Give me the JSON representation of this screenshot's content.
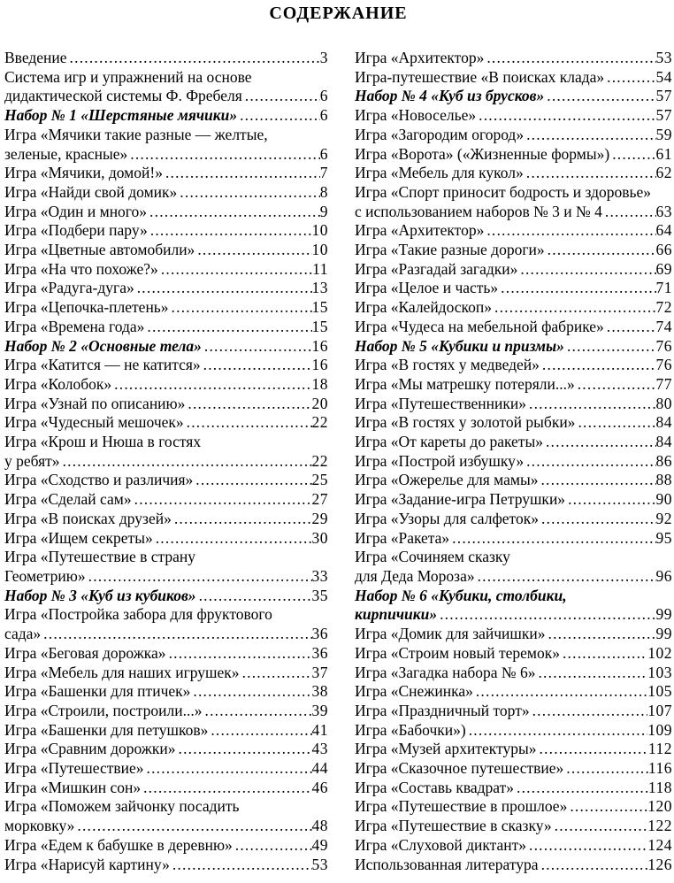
{
  "page": {
    "title": "СОДЕРЖАНИЕ"
  },
  "toc": {
    "left": [
      {
        "lines": [
          "Введение"
        ],
        "page": "3"
      },
      {
        "lines": [
          "Система игр и упражнений на основе",
          "дидактической системы Ф. Фребеля"
        ],
        "page": "6"
      },
      {
        "lines": [
          "Набор № 1 «Шерстяные мячики»"
        ],
        "page": "6",
        "section": true
      },
      {
        "lines": [
          "Игра «Мячики такие разные — желтые,",
          "зеленые, красные»"
        ],
        "page": "6"
      },
      {
        "lines": [
          "Игра «Мячики, домой!»"
        ],
        "page": "7"
      },
      {
        "lines": [
          "Игра «Найди свой домик»"
        ],
        "page": "8"
      },
      {
        "lines": [
          "Игра «Один и много»"
        ],
        "page": "9"
      },
      {
        "lines": [
          "Игра «Подбери пару»"
        ],
        "page": "10"
      },
      {
        "lines": [
          "Игра «Цветные автомобили»"
        ],
        "page": "10"
      },
      {
        "lines": [
          "Игра «На что похоже?»"
        ],
        "page": "11"
      },
      {
        "lines": [
          "Игра «Радуга-дуга»"
        ],
        "page": "13"
      },
      {
        "lines": [
          "Игра «Цепочка-плетень»"
        ],
        "page": "15"
      },
      {
        "lines": [
          "Игра «Времена года»"
        ],
        "page": "15"
      },
      {
        "lines": [
          "Набор № 2 «Основные тела»"
        ],
        "page": "16",
        "section": true
      },
      {
        "lines": [
          "Игра «Катится — не катится»"
        ],
        "page": "16"
      },
      {
        "lines": [
          "Игра «Колобок»"
        ],
        "page": "18"
      },
      {
        "lines": [
          "Игра «Узнай по описанию»"
        ],
        "page": "20"
      },
      {
        "lines": [
          "Игра «Чудесный мешочек»"
        ],
        "page": "22"
      },
      {
        "lines": [
          "Игра «Крош и Нюша в гостях",
          "у ребят»"
        ],
        "page": "22"
      },
      {
        "lines": [
          "Игра «Сходство и различия»"
        ],
        "page": "25"
      },
      {
        "lines": [
          "Игра «Сделай сам»"
        ],
        "page": "27"
      },
      {
        "lines": [
          "Игра «В поисках друзей»"
        ],
        "page": "29"
      },
      {
        "lines": [
          "Игра «Ищем секреты»"
        ],
        "page": "30"
      },
      {
        "lines": [
          "Игра «Путешествие в страну",
          "Геометрию»"
        ],
        "page": "33"
      },
      {
        "lines": [
          "Набор № 3 «Куб из кубиков»"
        ],
        "page": "35",
        "section": true
      },
      {
        "lines": [
          "Игра «Постройка забора для фруктового",
          "сада»"
        ],
        "page": "36"
      },
      {
        "lines": [
          "Игра «Беговая дорожка»"
        ],
        "page": "36"
      },
      {
        "lines": [
          "Игра «Мебель для наших игрушек»"
        ],
        "page": "37"
      },
      {
        "lines": [
          "Игра «Башенки для птичек»"
        ],
        "page": "38"
      },
      {
        "lines": [
          "Игра «Строили, построили...»"
        ],
        "page": "39"
      },
      {
        "lines": [
          "Игра «Башенки для петушков»"
        ],
        "page": "41"
      },
      {
        "lines": [
          "Игра «Сравним дорожки»"
        ],
        "page": "43"
      },
      {
        "lines": [
          "Игра «Путешествие»"
        ],
        "page": "44"
      },
      {
        "lines": [
          "Игра «Мишкин сон»"
        ],
        "page": "46"
      },
      {
        "lines": [
          "Игра «Поможем зайчонку посадить",
          "морковку»"
        ],
        "page": "48"
      },
      {
        "lines": [
          "Игра «Едем к бабушке в деревню»"
        ],
        "page": "49"
      },
      {
        "lines": [
          "Игра «Нарисуй картину»"
        ],
        "page": "53"
      }
    ],
    "right": [
      {
        "lines": [
          "Игра «Архитектор»"
        ],
        "page": "53"
      },
      {
        "lines": [
          "Игра-путешествие «В поисках клада»"
        ],
        "page": "54"
      },
      {
        "lines": [
          "Набор № 4 «Куб из брусков»"
        ],
        "page": "57",
        "section": true
      },
      {
        "lines": [
          "Игра «Новоселье»"
        ],
        "page": "57"
      },
      {
        "lines": [
          "Игра «Загородим огород»"
        ],
        "page": "59"
      },
      {
        "lines": [
          "Игра «Ворота» («Жизненные формы»)"
        ],
        "page": "61"
      },
      {
        "lines": [
          "Игра «Мебель для кукол»"
        ],
        "page": "62"
      },
      {
        "lines": [
          "Игра «Спорт приносит бодрость и здоровье»",
          "с использованием наборов № 3 и № 4"
        ],
        "page": "63"
      },
      {
        "lines": [
          "Игра «Архитектор»"
        ],
        "page": "64"
      },
      {
        "lines": [
          "Игра «Такие разные дороги»"
        ],
        "page": "66"
      },
      {
        "lines": [
          "Игра «Разгадай загадки»"
        ],
        "page": "69"
      },
      {
        "lines": [
          "Игра «Целое и часть»"
        ],
        "page": "71"
      },
      {
        "lines": [
          "Игра «Калейдоскоп»"
        ],
        "page": "72"
      },
      {
        "lines": [
          "Игра «Чудеса на мебельной фабрике»"
        ],
        "page": "74"
      },
      {
        "lines": [
          "Набор № 5 «Кубики и призмы»"
        ],
        "page": "76",
        "section": true
      },
      {
        "lines": [
          "Игра «В гостях у медведей»"
        ],
        "page": "76"
      },
      {
        "lines": [
          "Игра «Мы матрешку потеряли...»"
        ],
        "page": "77"
      },
      {
        "lines": [
          "Игра «Путешественники»"
        ],
        "page": "80"
      },
      {
        "lines": [
          "Игра «В гостях у золотой рыбки»"
        ],
        "page": "84"
      },
      {
        "lines": [
          "Игра «От кареты до ракеты»"
        ],
        "page": "84"
      },
      {
        "lines": [
          "Игра «Построй избушку»"
        ],
        "page": "86"
      },
      {
        "lines": [
          "Игра «Ожерелье для мамы»"
        ],
        "page": "88"
      },
      {
        "lines": [
          "Игра «Задание-игра Петрушки»"
        ],
        "page": "90"
      },
      {
        "lines": [
          "Игра «Узоры для салфеток»"
        ],
        "page": "92"
      },
      {
        "lines": [
          "Игра «Ракета»"
        ],
        "page": "95"
      },
      {
        "lines": [
          "Игра «Сочиняем сказку",
          "для Деда Мороза»"
        ],
        "page": "96"
      },
      {
        "lines": [
          "Набор № 6 «Кубики, столбики,",
          "кирпичики»"
        ],
        "page": "99",
        "section": true
      },
      {
        "lines": [
          "Игра «Домик для зайчишки»"
        ],
        "page": "99"
      },
      {
        "lines": [
          "Игра «Строим новый теремок»"
        ],
        "page": "102"
      },
      {
        "lines": [
          "Игра «Загадка набора № 6»"
        ],
        "page": "103"
      },
      {
        "lines": [
          "Игра «Снежинка»"
        ],
        "page": "105"
      },
      {
        "lines": [
          "Игра «Праздничный торт»"
        ],
        "page": "107"
      },
      {
        "lines": [
          "Игра «Бабочки»)"
        ],
        "page": "109"
      },
      {
        "lines": [
          "Игра «Музей архитектуры»"
        ],
        "page": "112"
      },
      {
        "lines": [
          "Игра «Сказочное путешествие»"
        ],
        "page": "116"
      },
      {
        "lines": [
          "Игра «Составь квадрат»"
        ],
        "page": "118"
      },
      {
        "lines": [
          "Игра «Путешествие в прошлое»"
        ],
        "page": "120"
      },
      {
        "lines": [
          "Игра «Путешествие в сказку»"
        ],
        "page": "122"
      },
      {
        "lines": [
          "Игра «Слуховой диктант»"
        ],
        "page": "124"
      },
      {
        "lines": [
          "Использованная литература"
        ],
        "page": "126"
      }
    ]
  }
}
